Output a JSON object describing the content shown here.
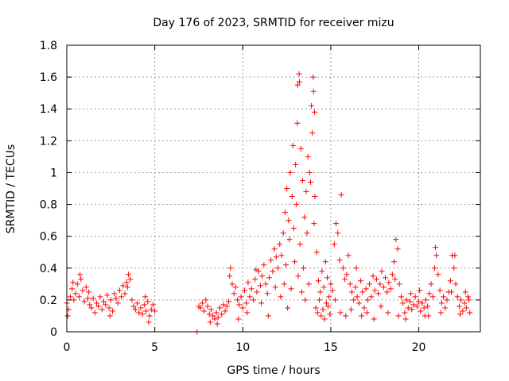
{
  "chart_data": {
    "type": "scatter",
    "title": "Day 176 of 2023, SRMTID for receiver mizu",
    "xlabel": "GPS time / hours",
    "ylabel": "SRMTID / TECUs",
    "xlim": [
      0,
      23.5
    ],
    "ylim": [
      0,
      1.8
    ],
    "xticks": [
      0,
      5,
      10,
      15,
      20
    ],
    "xtick_labels": [
      "0",
      "5",
      "10",
      "15",
      "20"
    ],
    "yticks": [
      0,
      0.2,
      0.4,
      0.6,
      0.8,
      1.0,
      1.2,
      1.4,
      1.6,
      1.8
    ],
    "ytick_labels": [
      "0",
      "0.2",
      "0.4",
      "0.6",
      "0.8",
      "1",
      "1.2",
      "1.4",
      "1.6",
      "1.8"
    ],
    "grid": true,
    "marker": "+",
    "series": [
      {
        "name": "SRMTID",
        "color": "#ff0000",
        "points": [
          [
            0.0,
            0.18
          ],
          [
            0.1,
            0.14
          ],
          [
            0.2,
            0.22
          ],
          [
            0.3,
            0.27
          ],
          [
            0.4,
            0.2
          ],
          [
            0.5,
            0.24
          ],
          [
            0.6,
            0.3
          ],
          [
            0.7,
            0.22
          ],
          [
            0.8,
            0.33
          ],
          [
            0.9,
            0.26
          ],
          [
            1.0,
            0.19
          ],
          [
            1.1,
            0.28
          ],
          [
            1.2,
            0.21
          ],
          [
            1.3,
            0.17
          ],
          [
            1.4,
            0.15
          ],
          [
            1.5,
            0.21
          ],
          [
            1.6,
            0.12
          ],
          [
            1.7,
            0.18
          ],
          [
            1.8,
            0.16
          ],
          [
            1.9,
            0.22
          ],
          [
            2.0,
            0.14
          ],
          [
            2.1,
            0.19
          ],
          [
            2.2,
            0.17
          ],
          [
            2.3,
            0.23
          ],
          [
            2.4,
            0.15
          ],
          [
            2.5,
            0.2
          ],
          [
            2.6,
            0.13
          ],
          [
            2.7,
            0.24
          ],
          [
            2.8,
            0.21
          ],
          [
            2.9,
            0.18
          ],
          [
            3.0,
            0.26
          ],
          [
            3.1,
            0.22
          ],
          [
            3.2,
            0.29
          ],
          [
            3.3,
            0.24
          ],
          [
            3.4,
            0.31
          ],
          [
            3.5,
            0.36
          ],
          [
            3.6,
            0.33
          ],
          [
            3.7,
            0.2
          ],
          [
            3.8,
            0.16
          ],
          [
            3.9,
            0.14
          ],
          [
            4.0,
            0.18
          ],
          [
            4.1,
            0.12
          ],
          [
            4.2,
            0.15
          ],
          [
            4.3,
            0.11
          ],
          [
            4.4,
            0.17
          ],
          [
            4.5,
            0.13
          ],
          [
            4.6,
            0.19
          ],
          [
            4.7,
            0.1
          ],
          [
            4.8,
            0.14
          ],
          [
            4.9,
            0.17
          ],
          [
            5.0,
            0.13
          ],
          [
            0.05,
            0.1
          ],
          [
            0.35,
            0.31
          ],
          [
            0.75,
            0.36
          ],
          [
            1.25,
            0.25
          ],
          [
            2.45,
            0.1
          ],
          [
            3.45,
            0.28
          ],
          [
            4.45,
            0.22
          ],
          [
            4.65,
            0.06
          ],
          [
            7.4,
            0.0
          ],
          [
            7.6,
            0.15
          ],
          [
            7.7,
            0.18
          ],
          [
            7.8,
            0.13
          ],
          [
            7.9,
            0.2
          ],
          [
            8.0,
            0.16
          ],
          [
            8.1,
            0.11
          ],
          [
            8.2,
            0.14
          ],
          [
            8.3,
            0.1
          ],
          [
            8.4,
            0.08
          ],
          [
            8.5,
            0.12
          ],
          [
            8.6,
            0.09
          ],
          [
            8.7,
            0.15
          ],
          [
            8.8,
            0.11
          ],
          [
            8.9,
            0.17
          ],
          [
            9.0,
            0.13
          ],
          [
            9.1,
            0.16
          ],
          [
            9.2,
            0.19
          ],
          [
            9.3,
            0.4
          ],
          [
            9.4,
            0.3
          ],
          [
            9.5,
            0.24
          ],
          [
            9.6,
            0.28
          ],
          [
            9.7,
            0.2
          ],
          [
            9.8,
            0.17
          ],
          [
            9.9,
            0.22
          ],
          [
            10.0,
            0.15
          ],
          [
            10.1,
            0.26
          ],
          [
            10.2,
            0.18
          ],
          [
            10.3,
            0.31
          ],
          [
            10.4,
            0.22
          ],
          [
            10.5,
            0.27
          ],
          [
            10.6,
            0.2
          ],
          [
            10.7,
            0.33
          ],
          [
            10.8,
            0.25
          ],
          [
            10.9,
            0.38
          ],
          [
            11.0,
            0.29
          ],
          [
            11.1,
            0.35
          ],
          [
            11.2,
            0.42
          ],
          [
            11.3,
            0.3
          ],
          [
            11.4,
            0.24
          ],
          [
            11.5,
            0.34
          ],
          [
            11.6,
            0.45
          ],
          [
            11.7,
            0.38
          ],
          [
            11.8,
            0.52
          ],
          [
            11.9,
            0.47
          ],
          [
            12.0,
            0.4
          ],
          [
            7.5,
            0.16
          ],
          [
            8.15,
            0.06
          ],
          [
            8.55,
            0.05
          ],
          [
            9.25,
            0.35
          ],
          [
            9.75,
            0.08
          ],
          [
            10.25,
            0.12
          ],
          [
            10.75,
            0.39
          ],
          [
            11.05,
            0.18
          ],
          [
            11.45,
            0.1
          ],
          [
            11.85,
            0.28
          ],
          [
            12.1,
            0.55
          ],
          [
            12.2,
            0.48
          ],
          [
            12.3,
            0.62
          ],
          [
            12.4,
            0.75
          ],
          [
            12.5,
            0.9
          ],
          [
            12.6,
            0.7
          ],
          [
            12.7,
            1.0
          ],
          [
            12.8,
            0.85
          ],
          [
            12.9,
            0.65
          ],
          [
            13.0,
            1.05
          ],
          [
            13.1,
            1.31
          ],
          [
            13.2,
            1.62
          ],
          [
            13.3,
            1.15
          ],
          [
            13.4,
            0.95
          ],
          [
            13.5,
            0.72
          ],
          [
            13.6,
            0.88
          ],
          [
            13.7,
            1.1
          ],
          [
            13.8,
            1.0
          ],
          [
            13.9,
            1.42
          ],
          [
            14.0,
            1.6
          ],
          [
            14.1,
            0.85
          ],
          [
            14.2,
            0.5
          ],
          [
            14.3,
            0.32
          ],
          [
            14.4,
            0.25
          ],
          [
            14.5,
            0.38
          ],
          [
            14.6,
            0.28
          ],
          [
            14.7,
            0.44
          ],
          [
            14.8,
            0.34
          ],
          [
            14.9,
            0.22
          ],
          [
            15.0,
            0.3
          ],
          [
            15.1,
            0.26
          ],
          [
            12.15,
            0.22
          ],
          [
            12.35,
            0.3
          ],
          [
            12.45,
            0.42
          ],
          [
            12.55,
            0.15
          ],
          [
            12.65,
            0.58
          ],
          [
            12.75,
            0.27
          ],
          [
            12.85,
            1.17
          ],
          [
            12.95,
            0.44
          ],
          [
            13.05,
            0.8
          ],
          [
            13.15,
            0.35
          ],
          [
            13.25,
            0.55
          ],
          [
            13.35,
            0.25
          ],
          [
            13.45,
            0.4
          ],
          [
            13.55,
            0.2
          ],
          [
            13.65,
            0.62
          ],
          [
            13.75,
            0.3
          ],
          [
            13.85,
            0.94
          ],
          [
            13.95,
            1.25
          ],
          [
            14.05,
            0.68
          ],
          [
            14.15,
            0.15
          ],
          [
            14.25,
            0.12
          ],
          [
            14.35,
            0.2
          ],
          [
            14.45,
            0.1
          ],
          [
            14.55,
            0.14
          ],
          [
            14.65,
            0.08
          ],
          [
            14.75,
            0.18
          ],
          [
            14.85,
            0.16
          ],
          [
            14.95,
            0.11
          ],
          [
            13.12,
            1.55
          ],
          [
            13.22,
            1.57
          ],
          [
            14.02,
            1.51
          ],
          [
            14.08,
            1.38
          ],
          [
            15.2,
            0.55
          ],
          [
            15.3,
            0.68
          ],
          [
            15.4,
            0.62
          ],
          [
            15.5,
            0.45
          ],
          [
            15.6,
            0.86
          ],
          [
            15.7,
            0.4
          ],
          [
            15.8,
            0.33
          ],
          [
            15.9,
            0.36
          ],
          [
            16.0,
            0.48
          ],
          [
            16.1,
            0.3
          ],
          [
            16.2,
            0.25
          ],
          [
            16.3,
            0.2
          ],
          [
            16.4,
            0.28
          ],
          [
            16.5,
            0.22
          ],
          [
            16.6,
            0.18
          ],
          [
            16.7,
            0.32
          ],
          [
            16.8,
            0.25
          ],
          [
            16.9,
            0.15
          ],
          [
            17.0,
            0.27
          ],
          [
            17.1,
            0.2
          ],
          [
            17.2,
            0.3
          ],
          [
            17.3,
            0.22
          ],
          [
            17.4,
            0.35
          ],
          [
            17.5,
            0.26
          ],
          [
            17.6,
            0.33
          ],
          [
            17.7,
            0.24
          ],
          [
            17.8,
            0.3
          ],
          [
            17.9,
            0.38
          ],
          [
            18.0,
            0.28
          ],
          [
            18.1,
            0.34
          ],
          [
            18.2,
            0.25
          ],
          [
            18.3,
            0.31
          ],
          [
            18.4,
            0.27
          ],
          [
            18.5,
            0.36
          ],
          [
            18.6,
            0.44
          ],
          [
            18.7,
            0.58
          ],
          [
            18.8,
            0.52
          ],
          [
            18.9,
            0.3
          ],
          [
            19.0,
            0.22
          ],
          [
            19.1,
            0.18
          ],
          [
            19.2,
            0.12
          ],
          [
            19.3,
            0.2
          ],
          [
            19.4,
            0.15
          ],
          [
            19.5,
            0.19
          ],
          [
            19.6,
            0.14
          ],
          [
            19.7,
            0.17
          ],
          [
            19.8,
            0.22
          ],
          [
            19.9,
            0.16
          ],
          [
            20.0,
            0.19
          ],
          [
            20.1,
            0.13
          ],
          [
            20.2,
            0.18
          ],
          [
            20.3,
            0.15
          ],
          [
            20.4,
            0.2
          ],
          [
            15.25,
            0.2
          ],
          [
            15.55,
            0.12
          ],
          [
            15.85,
            0.1
          ],
          [
            16.15,
            0.14
          ],
          [
            16.45,
            0.4
          ],
          [
            16.75,
            0.1
          ],
          [
            17.05,
            0.12
          ],
          [
            17.45,
            0.08
          ],
          [
            17.85,
            0.16
          ],
          [
            18.25,
            0.12
          ],
          [
            18.65,
            0.33
          ],
          [
            18.85,
            0.1
          ],
          [
            19.25,
            0.08
          ],
          [
            19.55,
            0.24
          ],
          [
            20.05,
            0.26
          ],
          [
            20.35,
            0.1
          ],
          [
            20.5,
            0.16
          ],
          [
            20.6,
            0.24
          ],
          [
            20.7,
            0.3
          ],
          [
            20.8,
            0.22
          ],
          [
            20.9,
            0.4
          ],
          [
            21.0,
            0.48
          ],
          [
            21.1,
            0.36
          ],
          [
            21.2,
            0.26
          ],
          [
            21.3,
            0.18
          ],
          [
            21.4,
            0.22
          ],
          [
            21.5,
            0.15
          ],
          [
            21.6,
            0.2
          ],
          [
            21.7,
            0.25
          ],
          [
            21.8,
            0.32
          ],
          [
            21.9,
            0.48
          ],
          [
            22.0,
            0.4
          ],
          [
            22.1,
            0.3
          ],
          [
            22.2,
            0.22
          ],
          [
            22.3,
            0.16
          ],
          [
            22.4,
            0.2
          ],
          [
            22.5,
            0.13
          ],
          [
            22.6,
            0.18
          ],
          [
            22.7,
            0.15
          ],
          [
            22.8,
            0.22
          ],
          [
            22.9,
            0.12
          ],
          [
            20.55,
            0.1
          ],
          [
            20.95,
            0.53
          ],
          [
            21.25,
            0.12
          ],
          [
            21.85,
            0.25
          ],
          [
            22.05,
            0.48
          ],
          [
            22.35,
            0.11
          ],
          [
            22.65,
            0.25
          ],
          [
            22.85,
            0.2
          ]
        ]
      }
    ]
  }
}
